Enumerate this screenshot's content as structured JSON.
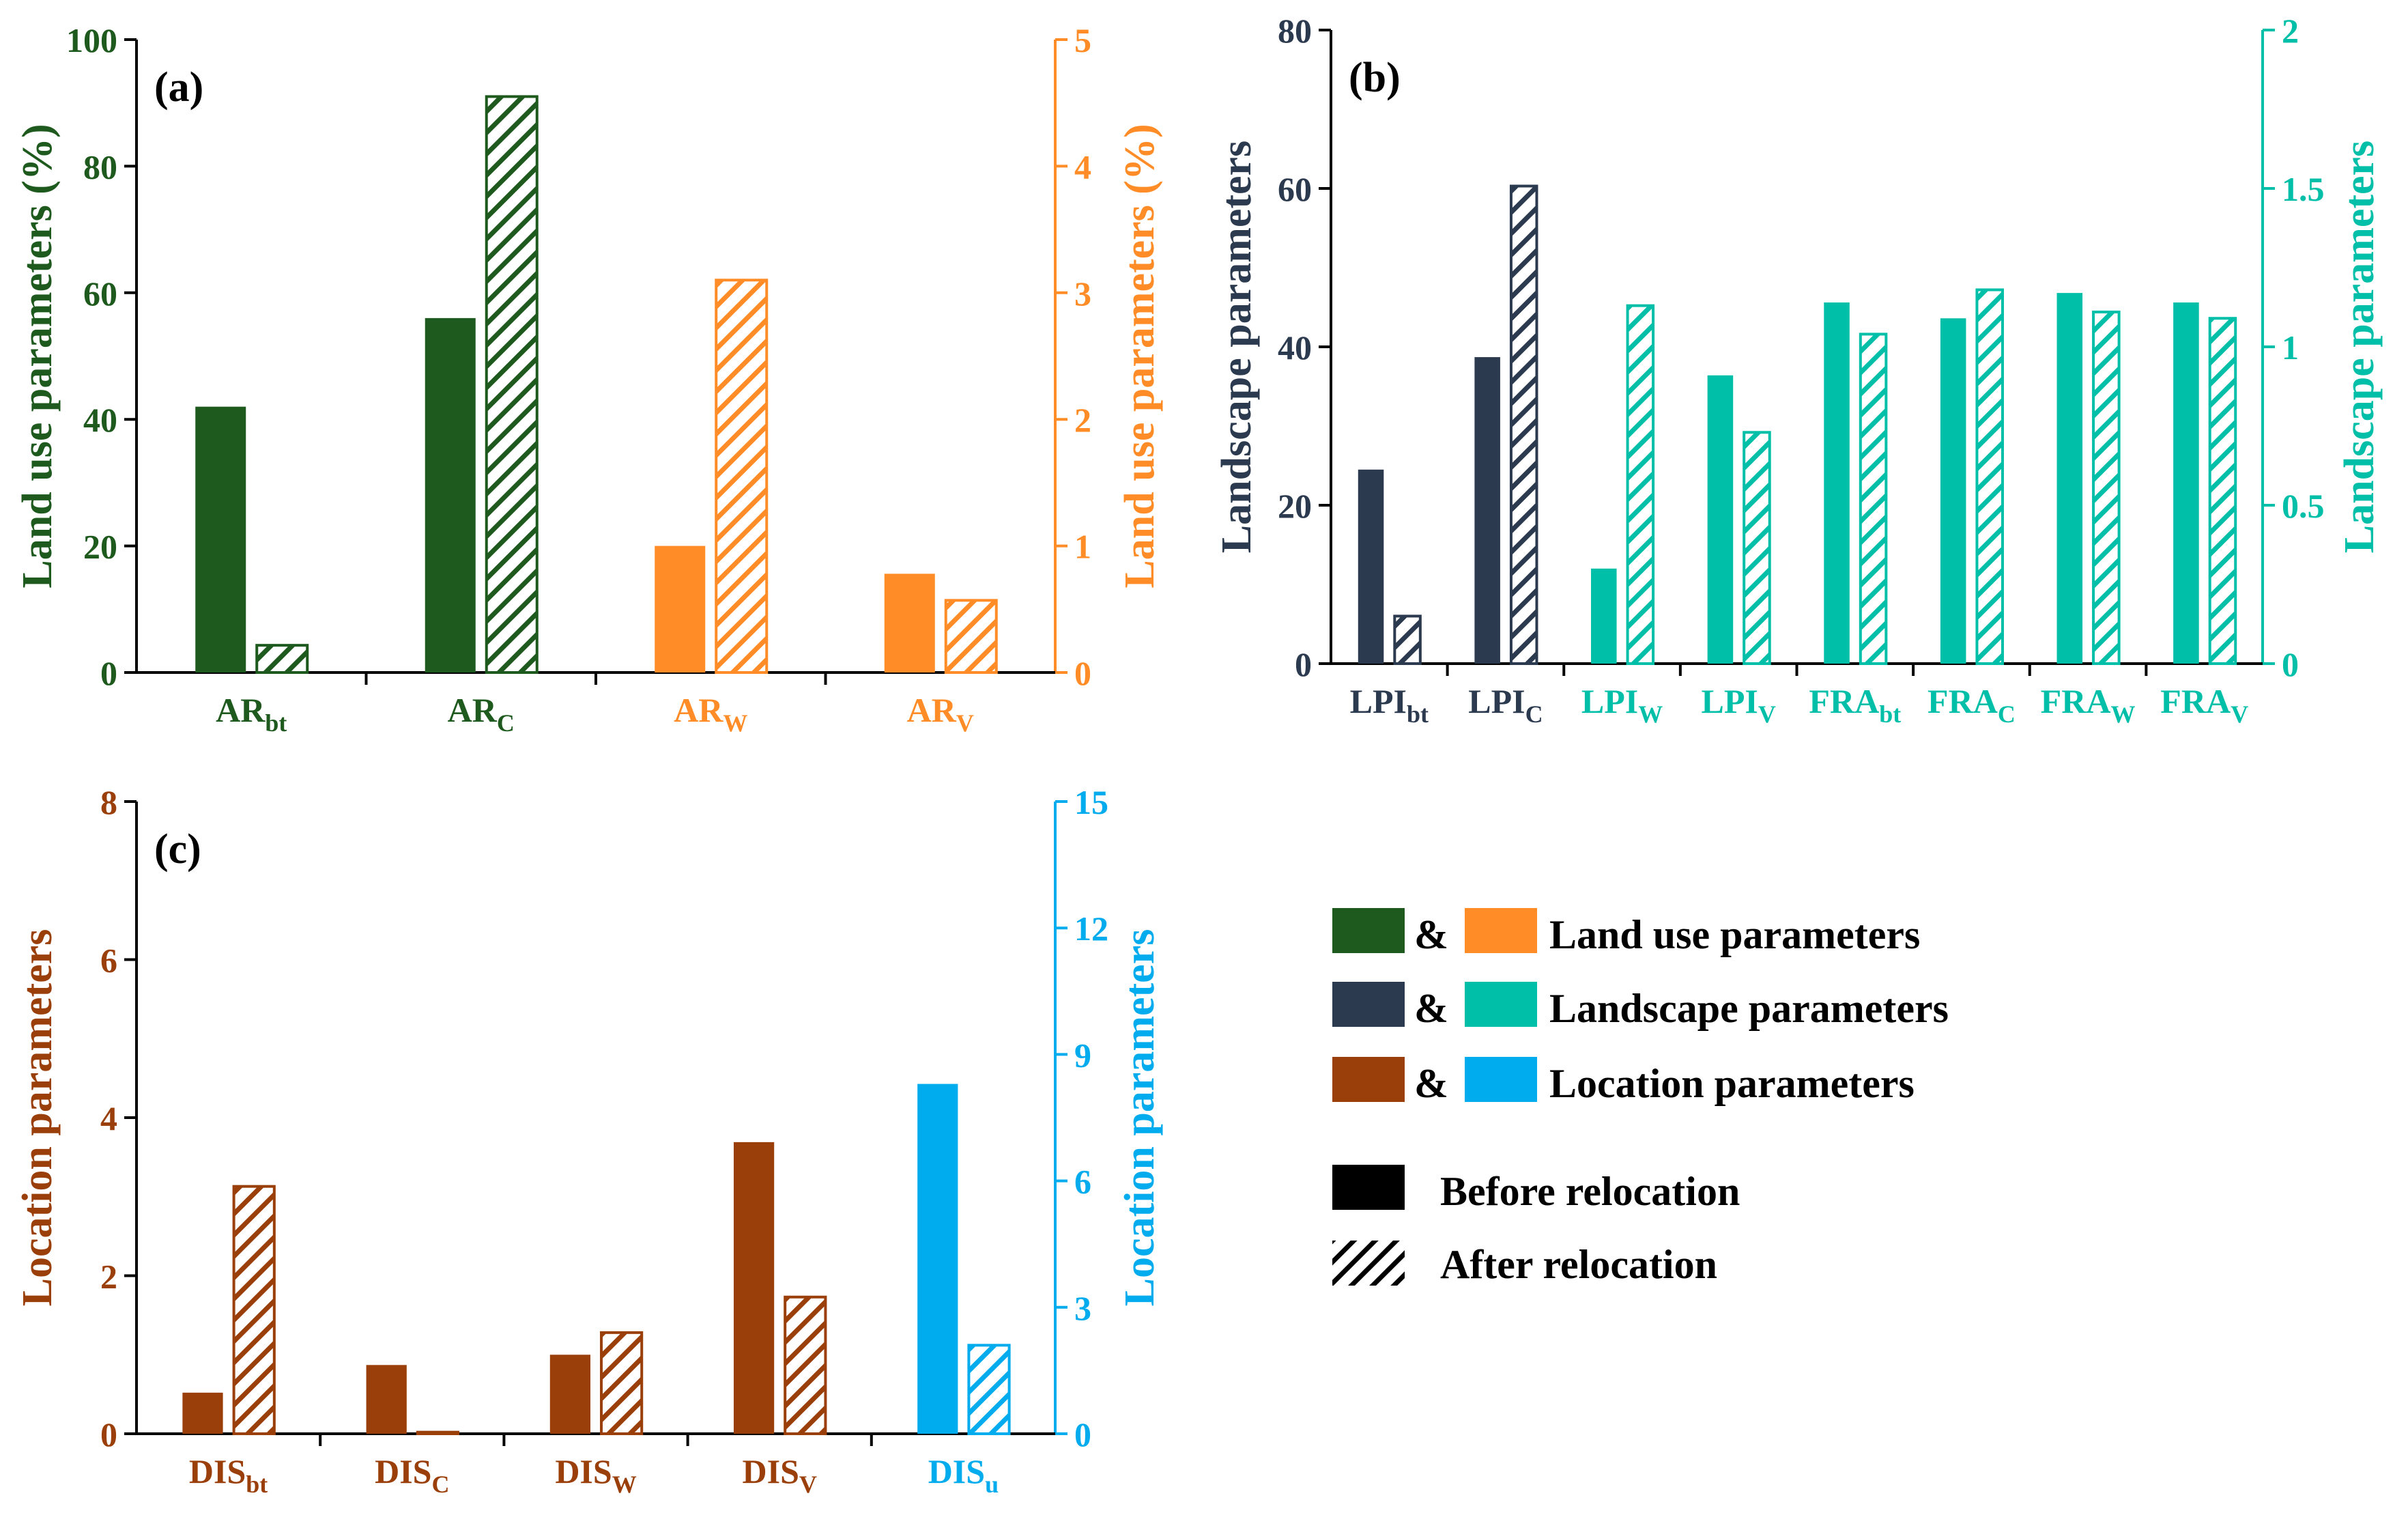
{
  "colors": {
    "dark_green": "#1E5A1E",
    "orange": "#FF8C26",
    "navy": "#2B3A4E",
    "teal": "#00BFA8",
    "brown": "#9A3F0A",
    "sky": "#00ABEE",
    "axis": "#000000",
    "label_a_left": "#1E5A1E",
    "label_a_right": "#FF8C26",
    "label_b_left": "#2B3A4E",
    "label_b_right": "#00BFA8",
    "label_c_left": "#9A3F0A",
    "label_c_right": "#00ABEE"
  },
  "chart_data": [
    {
      "type": "bar",
      "panel_label": "(a)",
      "ylabel_left": "Land use parameters (%)",
      "ylabel_right": "Land use parameters (%)",
      "ylim_left": [
        0,
        100
      ],
      "ylim_right": [
        0,
        5
      ],
      "yticks_left": [
        "0",
        "20",
        "40",
        "60",
        "80",
        "100"
      ],
      "yticks_right": [
        "0",
        "1",
        "2",
        "3",
        "4",
        "5"
      ],
      "categories": [
        {
          "base": "AR",
          "sub": "bt",
          "axis": "left",
          "before": 42,
          "after": 4.3
        },
        {
          "base": "AR",
          "sub": "C",
          "axis": "left",
          "before": 56,
          "after": 91
        },
        {
          "base": "AR",
          "sub": "W",
          "axis": "right",
          "before": 1.0,
          "after": 3.1
        },
        {
          "base": "AR",
          "sub": "V",
          "axis": "right",
          "before": 0.78,
          "after": 0.57
        }
      ],
      "series": [
        "Before relocation",
        "After relocation"
      ]
    },
    {
      "type": "bar",
      "panel_label": "(b)",
      "ylabel_left": "Landscape parameters",
      "ylabel_right": "Landscape parameters",
      "ylim_left": [
        0,
        80
      ],
      "ylim_right": [
        0,
        2
      ],
      "yticks_left": [
        "0",
        "20",
        "40",
        "60",
        "80"
      ],
      "yticks_right": [
        "0",
        "0.5",
        "1",
        "1.5",
        "2"
      ],
      "categories": [
        {
          "base": "LPI",
          "sub": "bt",
          "axis": "left",
          "before": 24.5,
          "after": 6
        },
        {
          "base": "LPI",
          "sub": "C",
          "axis": "left",
          "before": 38.7,
          "after": 60.3
        },
        {
          "base": "LPI",
          "sub": "W",
          "axis": "right",
          "before": 0.3,
          "after": 1.13
        },
        {
          "base": "LPI",
          "sub": "V",
          "axis": "right",
          "before": 0.91,
          "after": 0.73
        },
        {
          "base": "FRA",
          "sub": "bt",
          "axis": "right",
          "before": 1.14,
          "after": 1.04
        },
        {
          "base": "FRA",
          "sub": "C",
          "axis": "right",
          "before": 1.09,
          "after": 1.18
        },
        {
          "base": "FRA",
          "sub": "W",
          "axis": "right",
          "before": 1.17,
          "after": 1.11
        },
        {
          "base": "FRA",
          "sub": "V",
          "axis": "right",
          "before": 1.14,
          "after": 1.09
        }
      ],
      "series": [
        "Before relocation",
        "After relocation"
      ]
    },
    {
      "type": "bar",
      "panel_label": "(c)",
      "ylabel_left": "Location parameters",
      "ylabel_right": "Location parameters",
      "ylim_left": [
        0,
        8
      ],
      "ylim_right": [
        0,
        15
      ],
      "yticks_left": [
        "0",
        "2",
        "4",
        "6",
        "8"
      ],
      "yticks_right": [
        "0",
        "3",
        "6",
        "9",
        "12",
        "15"
      ],
      "categories": [
        {
          "base": "DIS",
          "sub": "bt",
          "axis": "left",
          "before": 0.52,
          "after": 3.13
        },
        {
          "base": "DIS",
          "sub": "C",
          "axis": "left",
          "before": 0.87,
          "after": 0.02
        },
        {
          "base": "DIS",
          "sub": "W",
          "axis": "left",
          "before": 1.0,
          "after": 1.28
        },
        {
          "base": "DIS",
          "sub": "V",
          "axis": "left",
          "before": 3.69,
          "after": 1.73
        },
        {
          "base": "DIS",
          "sub": "u",
          "axis": "right",
          "before": 8.3,
          "after": 2.1
        }
      ],
      "series": [
        "Before relocation",
        "After relocation"
      ]
    }
  ],
  "legend": {
    "rows": [
      {
        "amp": "&",
        "label": "Land use parameters"
      },
      {
        "amp": "&",
        "label": "Landscape parameters"
      },
      {
        "amp": "&",
        "label": "Location parameters"
      }
    ],
    "before_label": "Before relocation",
    "after_label": "After relocation"
  }
}
